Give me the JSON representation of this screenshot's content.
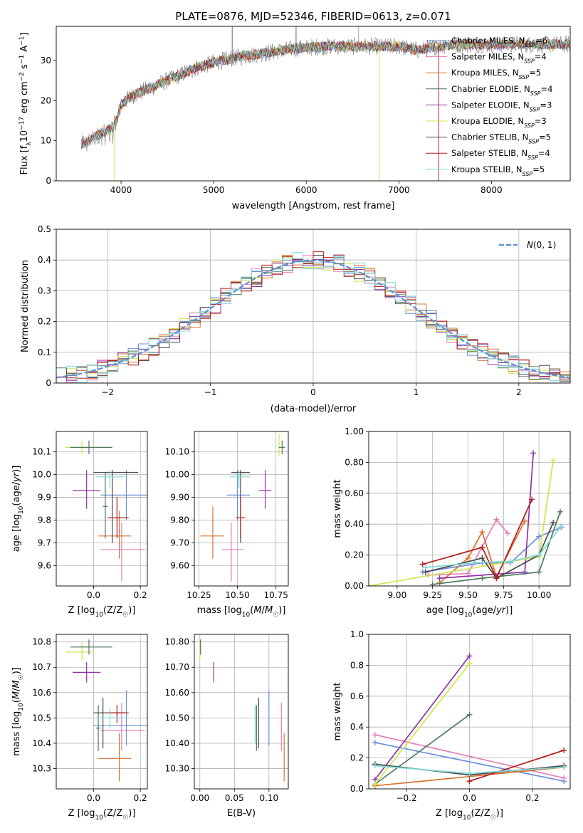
{
  "figure": {
    "title": "PLATE=0876, MJD=52346, FIBERID=0613, z=0.071"
  },
  "colors": {
    "Chabrier MILES": "#6b8fd6",
    "Salpeter MILES": "#e67fb8",
    "Kroupa MILES": "#d9722a",
    "Chabrier ELODIE": "#4d7a5c",
    "Salpeter ELODIE": "#8f32a8",
    "Kroupa ELODIE": "#cde64a",
    "Chabrier STELIB": "#4a4a4a",
    "Salpeter STELIB": "#b31a1a",
    "Kroupa STELIB": "#7fd9d6"
  },
  "chart_data": [
    {
      "id": "spectrum",
      "type": "line",
      "title": "PLATE=0876, MJD=52346, FIBERID=0613, z=0.071",
      "xlabel": "wavelength [Angstrom, rest frame]",
      "ylabel": "Flux [f_λ 10^-17 erg cm^-2 s^-1 A^-1]",
      "xlim": [
        3300,
        8850
      ],
      "ylim": [
        0,
        38.5
      ],
      "xticks": [
        4000,
        5000,
        6000,
        7000,
        8000
      ],
      "yticks": [
        0,
        10,
        20,
        30
      ],
      "grid": false,
      "legend_position": "right",
      "legend": [
        {
          "model": "Chabrier MILES",
          "nssp": "6"
        },
        {
          "model": "Salpeter MILES",
          "nssp": "4"
        },
        {
          "model": "Kroupa MILES",
          "nssp": "5"
        },
        {
          "model": "Chabrier ELODIE",
          "nssp": "4"
        },
        {
          "model": "Salpeter ELODIE",
          "nssp": "3"
        },
        {
          "model": "Kroupa ELODIE",
          "nssp": "3"
        },
        {
          "model": "Chabrier STELIB",
          "nssp": "5"
        },
        {
          "model": "Salpeter STELIB",
          "nssp": "4"
        },
        {
          "model": "Kroupa STELIB",
          "nssp": "5"
        }
      ],
      "continuum": {
        "x": [
          3570,
          3650,
          3800,
          3900,
          3950,
          4000,
          4100,
          4300,
          4500,
          4800,
          5000,
          5300,
          5600,
          5900,
          6200,
          6500,
          6800,
          7000,
          7200,
          7400,
          7600,
          7800,
          8000,
          8200,
          8400,
          8600,
          8800
        ],
        "y": [
          9,
          10,
          12,
          13,
          15,
          19,
          21,
          23,
          25,
          28,
          29.5,
          31,
          32,
          33,
          33.5,
          33.5,
          33.5,
          33.5,
          32.5,
          33.5,
          34,
          34,
          34,
          34,
          34,
          34,
          34
        ]
      }
    },
    {
      "id": "residuals",
      "type": "histogram",
      "xlabel": "(data-model)/error",
      "ylabel": "Normed distribution",
      "xlim": [
        -2.5,
        2.5
      ],
      "ylim": [
        0,
        0.5
      ],
      "xticks": [
        -2,
        -1,
        0,
        1,
        2
      ],
      "yticks": [
        0.0,
        0.1,
        0.2,
        0.3,
        0.4,
        0.5
      ],
      "grid": true,
      "legend_position": "top-right",
      "legend_label": "N(0,1)",
      "bin_width": 0.1
    },
    {
      "id": "age-vs-Z",
      "type": "scatter",
      "xlabel": "Z [log10(Z/Z☉)]",
      "ylabel": "age  [log10(age/yr)]",
      "xlim": [
        -0.16,
        0.23
      ],
      "ylim": [
        9.51,
        10.19
      ],
      "xticks": [
        0.0,
        0.2
      ],
      "yticks": [
        9.6,
        9.7,
        9.8,
        9.9,
        10.0,
        10.1
      ],
      "grid": true,
      "points": [
        {
          "model": "Chabrier MILES",
          "x": 0.14,
          "xlo": 0.03,
          "xhi": 0.24,
          "y": 9.91,
          "ylo": 9.8,
          "yhi": 10.02
        },
        {
          "model": "Salpeter MILES",
          "x": 0.12,
          "xlo": 0.03,
          "xhi": 0.22,
          "y": 9.67,
          "ylo": 9.53,
          "yhi": 9.79
        },
        {
          "model": "Kroupa MILES",
          "x": 0.11,
          "xlo": 0.02,
          "xhi": 0.16,
          "y": 9.73,
          "ylo": 9.63,
          "yhi": 9.84
        },
        {
          "model": "Chabrier ELODIE",
          "x": 0.05,
          "xlo": 0.04,
          "xhi": 0.06,
          "y": 9.86,
          "ylo": 9.72,
          "yhi": 10.01
        },
        {
          "model": "Salpeter ELODIE",
          "x": -0.03,
          "xlo": -0.09,
          "xhi": 0.03,
          "y": 9.93,
          "ylo": 9.85,
          "yhi": 10.02
        },
        {
          "model": "Kroupa ELODIE",
          "x": -0.05,
          "xlo": -0.12,
          "xhi": 0.0,
          "y": 10.12,
          "ylo": 10.09,
          "yhi": 10.15
        },
        {
          "model": "Chabrier STELIB",
          "x": 0.08,
          "xlo": 0.0,
          "xhi": 0.19,
          "y": 10.01,
          "ylo": 9.7,
          "yhi": 10.02
        },
        {
          "model": "Salpeter STELIB",
          "x": 0.1,
          "xlo": 0.06,
          "xhi": 0.15,
          "y": 9.81,
          "ylo": 9.72,
          "yhi": 9.9
        },
        {
          "model": "Kroupa STELIB",
          "x": 0.07,
          "xlo": 0.01,
          "xhi": 0.13,
          "y": 9.99,
          "ylo": 9.94,
          "yhi": 10.02
        },
        {
          "model": "Chabrier ELODIE",
          "x": -0.02,
          "xlo": -0.1,
          "xhi": 0.08,
          "y": 10.12,
          "ylo": 10.09,
          "yhi": 10.15
        }
      ]
    },
    {
      "id": "age-vs-mass",
      "type": "scatter",
      "xlabel": "mass [log10(M/M☉)]",
      "ylabel": "",
      "xlim": [
        10.22,
        10.83
      ],
      "ylim": [
        9.51,
        10.19
      ],
      "xticks": [
        10.25,
        10.5,
        10.75
      ],
      "yticks": [
        9.6,
        9.7,
        9.8,
        9.9,
        10.0,
        10.1
      ],
      "grid": true,
      "points": [
        {
          "model": "Chabrier MILES",
          "x": 10.5,
          "xlo": 10.43,
          "xhi": 10.58,
          "y": 9.91,
          "ylo": 9.8,
          "yhi": 10.02
        },
        {
          "model": "Salpeter MILES",
          "x": 10.46,
          "xlo": 10.4,
          "xhi": 10.54,
          "y": 9.67,
          "ylo": 9.53,
          "yhi": 9.79
        },
        {
          "model": "Kroupa MILES",
          "x": 10.34,
          "xlo": 10.26,
          "xhi": 10.41,
          "y": 9.73,
          "ylo": 9.63,
          "yhi": 9.86
        },
        {
          "model": "Salpeter ELODIE",
          "x": 10.68,
          "xlo": 10.64,
          "xhi": 10.72,
          "y": 9.93,
          "ylo": 9.85,
          "yhi": 10.02
        },
        {
          "model": "Kroupa ELODIE",
          "x": 10.77,
          "xlo": 10.76,
          "xhi": 10.8,
          "y": 10.12,
          "ylo": 10.08,
          "yhi": 10.18
        },
        {
          "model": "Chabrier ELODIE",
          "x": 10.79,
          "xlo": 10.77,
          "xhi": 10.81,
          "y": 10.12,
          "ylo": 10.09,
          "yhi": 10.15
        },
        {
          "model": "Chabrier STELIB",
          "x": 10.52,
          "xlo": 10.46,
          "xhi": 10.58,
          "y": 10.01,
          "ylo": 9.7,
          "yhi": 10.02
        },
        {
          "model": "Salpeter STELIB",
          "x": 10.52,
          "xlo": 10.49,
          "xhi": 10.55,
          "y": 9.81,
          "ylo": 9.72,
          "yhi": 9.9
        },
        {
          "model": "Kroupa STELIB",
          "x": 10.51,
          "xlo": 10.45,
          "xhi": 10.58,
          "y": 9.99,
          "ylo": 9.94,
          "yhi": 10.02
        }
      ]
    },
    {
      "id": "mass-weight-vs-age",
      "type": "line",
      "xlabel": "age  [log10(age/yr)]",
      "ylabel": "mass weight",
      "xlim": [
        8.8,
        10.22
      ],
      "ylim": [
        0,
        1.0
      ],
      "xticks": [
        9.0,
        9.25,
        9.5,
        9.75,
        10.0
      ],
      "yticks": [
        0.0,
        0.2,
        0.4,
        0.6,
        0.8,
        1.0
      ],
      "grid": true,
      "series": [
        {
          "model": "Chabrier MILES",
          "x": [
            9.18,
            9.6,
            9.8,
            10.0,
            10.16
          ],
          "y": [
            0.09,
            0.15,
            0.15,
            0.32,
            0.38
          ]
        },
        {
          "model": "Salpeter MILES",
          "x": [
            9.22,
            9.5,
            9.7,
            9.78
          ],
          "y": [
            0.07,
            0.08,
            0.43,
            0.34
          ]
        },
        {
          "model": "Kroupa MILES",
          "x": [
            9.3,
            9.5,
            9.6,
            9.7,
            9.9
          ],
          "y": [
            0.02,
            0.18,
            0.35,
            0.06,
            0.42
          ]
        },
        {
          "model": "Chabrier ELODIE",
          "x": [
            9.25,
            9.6,
            10.0,
            10.15
          ],
          "y": [
            0.01,
            0.05,
            0.09,
            0.48
          ]
        },
        {
          "model": "Salpeter ELODIE",
          "x": [
            9.3,
            9.9,
            9.96
          ],
          "y": [
            0.05,
            0.09,
            0.86
          ]
        },
        {
          "model": "Kroupa ELODIE",
          "x": [
            8.8,
            10.0,
            10.1
          ],
          "y": [
            0.0,
            0.19,
            0.81
          ]
        },
        {
          "model": "Chabrier STELIB",
          "x": [
            9.2,
            9.6,
            9.7,
            10.0,
            10.1
          ],
          "y": [
            0.09,
            0.18,
            0.05,
            0.2,
            0.41
          ]
        },
        {
          "model": "Salpeter STELIB",
          "x": [
            9.18,
            9.6,
            9.7,
            9.95
          ],
          "y": [
            0.14,
            0.25,
            0.05,
            0.56
          ]
        },
        {
          "model": "Kroupa STELIB",
          "x": [
            9.2,
            9.55,
            9.8,
            10.0,
            10.15
          ],
          "y": [
            0.12,
            0.15,
            0.16,
            0.2,
            0.38
          ]
        }
      ]
    },
    {
      "id": "mass-vs-Z",
      "type": "scatter",
      "xlabel": "Z [log10(Z/Z☉)]",
      "ylabel": "mass [log10(M/M☉)]",
      "xlim": [
        -0.16,
        0.23
      ],
      "ylim": [
        10.22,
        10.83
      ],
      "xticks": [
        0.0,
        0.2
      ],
      "yticks": [
        10.3,
        10.4,
        10.5,
        10.6,
        10.7,
        10.8
      ],
      "grid": true,
      "points": [
        {
          "model": "Chabrier MILES",
          "x": 0.14,
          "xlo": 0.0,
          "xhi": 0.24,
          "y": 10.47,
          "ylo": 10.39,
          "yhi": 10.61
        },
        {
          "model": "Salpeter MILES",
          "x": 0.12,
          "xlo": 0.03,
          "xhi": 0.22,
          "y": 10.45,
          "ylo": 10.37,
          "yhi": 10.56
        },
        {
          "model": "Kroupa MILES",
          "x": 0.11,
          "xlo": 0.02,
          "xhi": 0.16,
          "y": 10.34,
          "ylo": 10.25,
          "yhi": 10.44
        },
        {
          "model": "Chabrier ELODIE",
          "x": 0.02,
          "xlo": 0.01,
          "xhi": 0.03,
          "y": 10.46,
          "ylo": 10.37,
          "yhi": 10.55
        },
        {
          "model": "Salpeter ELODIE",
          "x": -0.03,
          "xlo": -0.09,
          "xhi": 0.03,
          "y": 10.68,
          "ylo": 10.64,
          "yhi": 10.72
        },
        {
          "model": "Kroupa ELODIE",
          "x": -0.05,
          "xlo": -0.12,
          "xhi": 0.0,
          "y": 10.76,
          "ylo": 10.73,
          "yhi": 10.8
        },
        {
          "model": "Chabrier STELIB",
          "x": 0.04,
          "xlo": 0.0,
          "xhi": 0.13,
          "y": 10.52,
          "ylo": 10.38,
          "yhi": 10.58
        },
        {
          "model": "Salpeter STELIB",
          "x": 0.1,
          "xlo": 0.06,
          "xhi": 0.15,
          "y": 10.52,
          "ylo": 10.48,
          "yhi": 10.55
        },
        {
          "model": "Kroupa STELIB",
          "x": 0.07,
          "xlo": 0.01,
          "xhi": 0.13,
          "y": 10.5,
          "ylo": 10.46,
          "yhi": 10.54
        },
        {
          "model": "Chabrier ELODIE",
          "x": -0.02,
          "xlo": -0.1,
          "xhi": 0.08,
          "y": 10.78,
          "ylo": 10.75,
          "yhi": 10.81
        }
      ]
    },
    {
      "id": "mass-vs-EBV",
      "type": "scatter",
      "xlabel": "E(B-V)",
      "ylabel": "",
      "xlim": [
        -0.008,
        0.128
      ],
      "ylim": [
        10.22,
        10.83
      ],
      "xticks": [
        0.0,
        0.05,
        0.1
      ],
      "yticks": [
        10.3,
        10.4,
        10.5,
        10.6,
        10.7,
        10.8
      ],
      "grid": true,
      "points": [
        {
          "model": "Chabrier MILES",
          "x": 0.1,
          "xlo": 0.1,
          "xhi": 0.1,
          "y": 10.47,
          "ylo": 10.39,
          "yhi": 10.61
        },
        {
          "model": "Salpeter MILES",
          "x": 0.118,
          "xlo": 0.118,
          "xhi": 0.118,
          "y": 10.45,
          "ylo": 10.37,
          "yhi": 10.56
        },
        {
          "model": "Kroupa MILES",
          "x": 0.122,
          "xlo": 0.122,
          "xhi": 0.122,
          "y": 10.34,
          "ylo": 10.25,
          "yhi": 10.44
        },
        {
          "model": "Chabrier ELODIE",
          "x": 0.082,
          "xlo": 0.082,
          "xhi": 0.082,
          "y": 10.46,
          "ylo": 10.37,
          "yhi": 10.55
        },
        {
          "model": "Salpeter ELODIE",
          "x": 0.02,
          "xlo": 0.02,
          "xhi": 0.02,
          "y": 10.68,
          "ylo": 10.64,
          "yhi": 10.72
        },
        {
          "model": "Kroupa ELODIE",
          "x": 0.0,
          "xlo": 0.0,
          "xhi": 0.0,
          "y": 10.76,
          "ylo": 10.73,
          "yhi": 10.8
        },
        {
          "model": "Chabrier STELIB",
          "x": 0.085,
          "xlo": 0.085,
          "xhi": 0.085,
          "y": 10.48,
          "ylo": 10.38,
          "yhi": 10.58
        },
        {
          "model": "Kroupa STELIB",
          "x": 0.08,
          "xlo": 0.08,
          "xhi": 0.08,
          "y": 10.48,
          "ylo": 10.4,
          "yhi": 10.55
        },
        {
          "model": "Chabrier ELODIE",
          "x": 0.001,
          "xlo": 0.001,
          "xhi": 0.001,
          "y": 10.78,
          "ylo": 10.75,
          "yhi": 10.81
        }
      ]
    },
    {
      "id": "mass-weight-vs-Z",
      "type": "line",
      "xlabel": "Z [log10(Z/Z☉)]",
      "ylabel": "mass weight",
      "xlim": [
        -0.32,
        0.32
      ],
      "ylim": [
        0,
        1.0
      ],
      "xticks": [
        -0.2,
        0.0,
        0.2
      ],
      "yticks": [
        0.0,
        0.2,
        0.4,
        0.6,
        0.8,
        1.0
      ],
      "grid": true,
      "series": [
        {
          "model": "Chabrier MILES",
          "x": [
            -0.3,
            0.3
          ],
          "y": [
            0.3,
            0.05
          ]
        },
        {
          "model": "Salpeter MILES",
          "x": [
            -0.3,
            0.3
          ],
          "y": [
            0.35,
            0.07
          ]
        },
        {
          "model": "Kroupa MILES",
          "x": [
            -0.3,
            0.3
          ],
          "y": [
            0.02,
            0.14
          ]
        },
        {
          "model": "Chabrier ELODIE",
          "x": [
            -0.3,
            0.0
          ],
          "y": [
            0.03,
            0.48
          ]
        },
        {
          "model": "Salpeter ELODIE",
          "x": [
            -0.3,
            0.0
          ],
          "y": [
            0.06,
            0.86
          ]
        },
        {
          "model": "Kroupa ELODIE",
          "x": [
            -0.3,
            0.0
          ],
          "y": [
            0.03,
            0.81
          ]
        },
        {
          "model": "Chabrier STELIB",
          "x": [
            -0.3,
            0.0,
            0.3
          ],
          "y": [
            0.16,
            0.09,
            0.15
          ]
        },
        {
          "model": "Salpeter STELIB",
          "x": [
            0.0,
            0.3
          ],
          "y": [
            0.05,
            0.25
          ]
        },
        {
          "model": "Kroupa STELIB",
          "x": [
            -0.3,
            0.0,
            0.3
          ],
          "y": [
            0.15,
            0.1,
            0.14
          ]
        }
      ]
    }
  ]
}
